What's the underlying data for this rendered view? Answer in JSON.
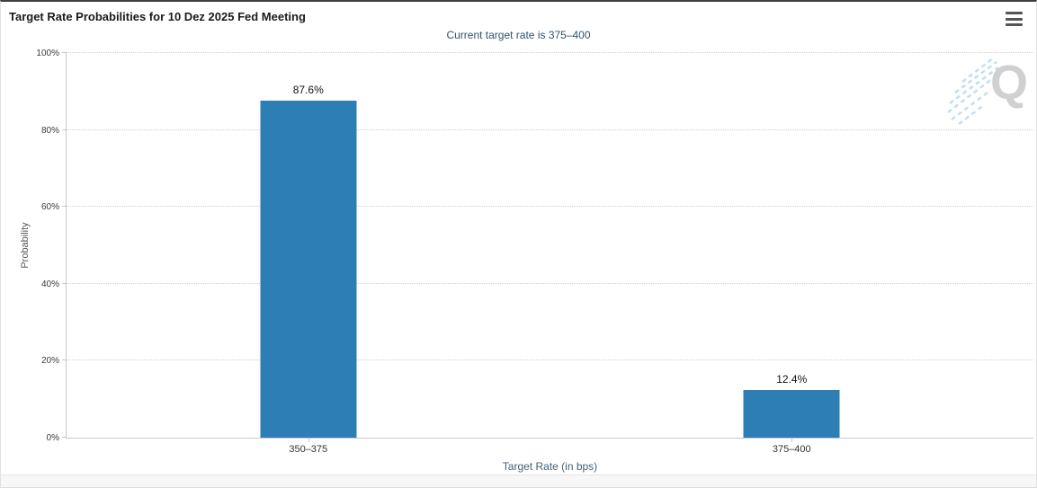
{
  "header": {
    "title": "Target Rate Probabilities for 10 Dez 2025 Fed Meeting"
  },
  "chart_data": {
    "type": "bar",
    "title": "Target Rate Probabilities for 10 Dez 2025 Fed Meeting",
    "subtitle": "Current target rate is 375–400",
    "categories": [
      "350–375",
      "375–400"
    ],
    "values": [
      87.6,
      12.4
    ],
    "value_labels": [
      "87.6%",
      "12.4%"
    ],
    "xlabel": "Target Rate (in bps)",
    "ylabel": "Probability",
    "ylim": [
      0,
      100
    ],
    "yticks": [
      "0%",
      "20%",
      "40%",
      "60%",
      "80%",
      "100%"
    ],
    "grid": "horizontal-dotted",
    "legend": "none",
    "bar_color": "#2d7eb5"
  },
  "watermark": {
    "letter": "Q"
  },
  "colors": {
    "bar": "#2d7eb5",
    "subtitle_text": "#2e5372",
    "axis_title_text": "#44607a"
  }
}
